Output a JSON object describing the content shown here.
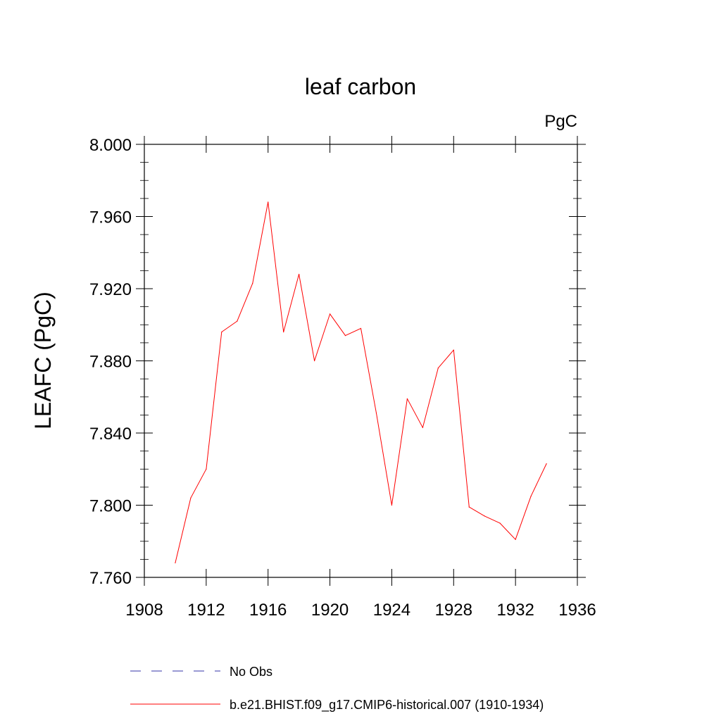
{
  "chart_data": {
    "type": "line",
    "title": "leaf carbon",
    "units": "PgC",
    "xlabel": "",
    "ylabel": "LEAFC  (PgC)",
    "xlim": [
      1908,
      1936
    ],
    "ylim": [
      7.76,
      8.0
    ],
    "grid": false,
    "x_ticks": [
      1908,
      1912,
      1916,
      1920,
      1924,
      1928,
      1932,
      1936
    ],
    "x_tick_labels": [
      "1908",
      "1912",
      "1916",
      "1920",
      "1924",
      "1928",
      "1932",
      "1936"
    ],
    "y_ticks": [
      7.76,
      7.8,
      7.84,
      7.88,
      7.92,
      7.96,
      8.0
    ],
    "y_tick_labels": [
      "7.760",
      "7.800",
      "7.840",
      "7.880",
      "7.920",
      "7.960",
      "8.000"
    ],
    "legend_position": "bottom",
    "series": [
      {
        "name": "b.e21.BHIST.f09_g17.CMIP6-historical.007 (1910-1934)",
        "color": "#ff0000",
        "style": "solid",
        "x": [
          1910,
          1911,
          1912,
          1913,
          1914,
          1915,
          1916,
          1917,
          1918,
          1919,
          1920,
          1921,
          1922,
          1923,
          1924,
          1925,
          1926,
          1927,
          1928,
          1929,
          1930,
          1931,
          1932,
          1933,
          1934
        ],
        "values": [
          7.768,
          7.804,
          7.82,
          7.896,
          7.902,
          7.923,
          7.968,
          7.896,
          7.928,
          7.88,
          7.906,
          7.894,
          7.898,
          7.851,
          7.8,
          7.859,
          7.843,
          7.876,
          7.886,
          7.799,
          7.794,
          7.79,
          7.781,
          7.805,
          7.823
        ]
      }
    ],
    "legend": [
      {
        "label": "No Obs",
        "color": "#3333aa",
        "style": "dashed"
      },
      {
        "label": "b.e21.BHIST.f09_g17.CMIP6-historical.007 (1910-1934)",
        "color": "#ff0000",
        "style": "solid"
      }
    ]
  }
}
